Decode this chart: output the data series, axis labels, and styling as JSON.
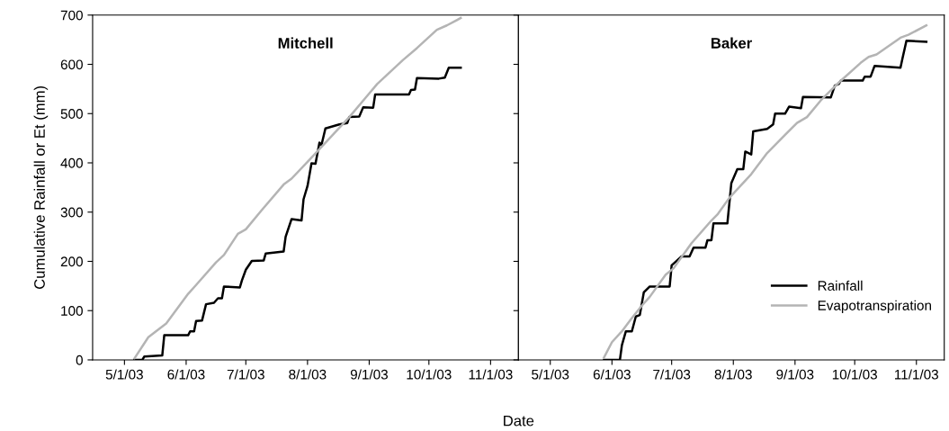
{
  "chart_data": [
    {
      "type": "line",
      "title": "Mitchell",
      "xlabel": "Date",
      "ylabel": "Cumulative Rainfall or Et (mm)",
      "xlim": [
        "2003-04-15",
        "2003-11-15"
      ],
      "ylim": [
        0,
        700
      ],
      "yticks": [
        0,
        100,
        200,
        300,
        400,
        500,
        600,
        700
      ],
      "xticks": [
        {
          "value": "2003-05-01",
          "label": "5/1/03"
        },
        {
          "value": "2003-06-01",
          "label": "6/1/03"
        },
        {
          "value": "2003-07-01",
          "label": "7/1/03"
        },
        {
          "value": "2003-08-01",
          "label": "8/1/03"
        },
        {
          "value": "2003-09-01",
          "label": "9/1/03"
        },
        {
          "value": "2003-10-01",
          "label": "10/1/03"
        },
        {
          "value": "2003-11-01",
          "label": "11/1/03"
        }
      ],
      "grid": false,
      "legend": false,
      "series": [
        {
          "color": "#000000",
          "x": [
            "2003-05-06",
            "2003-05-10",
            "2003-05-11",
            "2003-05-20",
            "2003-05-21",
            "2003-06-02",
            "2003-06-03",
            "2003-06-05",
            "2003-06-06",
            "2003-06-09",
            "2003-06-11",
            "2003-06-15",
            "2003-06-17",
            "2003-06-19",
            "2003-06-20",
            "2003-06-28",
            "2003-06-29",
            "2003-07-01",
            "2003-07-04",
            "2003-07-10",
            "2003-07-11",
            "2003-07-20",
            "2003-07-21",
            "2003-07-24",
            "2003-07-29",
            "2003-07-30",
            "2003-08-01",
            "2003-08-03",
            "2003-08-05",
            "2003-08-07",
            "2003-08-08",
            "2003-08-10",
            "2003-08-17",
            "2003-08-21",
            "2003-08-22",
            "2003-08-27",
            "2003-08-29",
            "2003-09-03",
            "2003-09-04",
            "2003-09-21",
            "2003-09-22",
            "2003-09-24",
            "2003-09-25",
            "2003-10-06",
            "2003-10-09",
            "2003-10-11",
            "2003-10-17"
          ],
          "values": [
            0,
            0,
            7,
            9,
            50,
            50,
            58,
            58,
            79,
            80,
            113,
            116,
            125,
            125,
            149,
            147,
            161,
            183,
            201,
            202,
            216,
            220,
            250,
            286,
            283,
            326,
            353,
            399,
            398,
            441,
            436,
            470,
            478,
            481,
            493,
            494,
            513,
            512,
            539,
            539,
            548,
            549,
            572,
            571,
            573,
            593,
            593
          ]
        },
        {
          "color": "#b4b4b4",
          "x": [
            "2003-05-06",
            "2003-05-13",
            "2003-05-22",
            "2003-06-02",
            "2003-06-06",
            "2003-06-16",
            "2003-06-20",
            "2003-06-27",
            "2003-07-01",
            "2003-07-09",
            "2003-07-20",
            "2003-07-24",
            "2003-08-01",
            "2003-08-08",
            "2003-08-22",
            "2003-08-31",
            "2003-09-05",
            "2003-09-18",
            "2003-09-25",
            "2003-10-05",
            "2003-10-10",
            "2003-10-17"
          ],
          "values": [
            3,
            46,
            74,
            134,
            152,
            198,
            213,
            256,
            265,
            304,
            356,
            368,
            402,
            432,
            493,
            536,
            560,
            609,
            633,
            670,
            679,
            694
          ]
        }
      ]
    },
    {
      "type": "line",
      "title": "Baker",
      "xlim": [
        "2003-04-15",
        "2003-11-15"
      ],
      "ylim": [
        0,
        700
      ],
      "yticks": [
        0,
        100,
        200,
        300,
        400,
        500,
        600,
        700
      ],
      "tick_labels": "x",
      "xticks": [
        {
          "value": "2003-05-01",
          "label": "5/1/03"
        },
        {
          "value": "2003-06-01",
          "label": "6/1/03"
        },
        {
          "value": "2003-07-01",
          "label": "7/1/03"
        },
        {
          "value": "2003-08-01",
          "label": "8/1/03"
        },
        {
          "value": "2003-09-01",
          "label": "9/1/03"
        },
        {
          "value": "2003-10-01",
          "label": "10/1/03"
        },
        {
          "value": "2003-11-01",
          "label": "11/1/03"
        }
      ],
      "grid": false,
      "legend": "bottom right",
      "series": [
        {
          "name": "Rainfall",
          "color": "#000000",
          "x": [
            "2003-05-28",
            "2003-06-05",
            "2003-06-06",
            "2003-06-08",
            "2003-06-11",
            "2003-06-13",
            "2003-06-15",
            "2003-06-17",
            "2003-06-20",
            "2003-06-30",
            "2003-07-01",
            "2003-07-06",
            "2003-07-10",
            "2003-07-12",
            "2003-07-18",
            "2003-07-19",
            "2003-07-21",
            "2003-07-22",
            "2003-07-29",
            "2003-07-31",
            "2003-08-03",
            "2003-08-06",
            "2003-08-07",
            "2003-08-10",
            "2003-08-11",
            "2003-08-18",
            "2003-08-21",
            "2003-08-22",
            "2003-08-27",
            "2003-08-29",
            "2003-09-04",
            "2003-09-05",
            "2003-09-19",
            "2003-09-21",
            "2003-09-23",
            "2003-09-24",
            "2003-10-05",
            "2003-10-06",
            "2003-10-09",
            "2003-10-11",
            "2003-10-24",
            "2003-10-25",
            "2003-10-27",
            "2003-11-06"
          ],
          "values": [
            0,
            0,
            30,
            58,
            58,
            88,
            91,
            137,
            149,
            149,
            192,
            210,
            210,
            228,
            228,
            243,
            243,
            277,
            277,
            359,
            387,
            387,
            423,
            417,
            464,
            469,
            478,
            500,
            500,
            514,
            511,
            534,
            533,
            557,
            560,
            567,
            567,
            575,
            575,
            597,
            593,
            612,
            648,
            646
          ]
        },
        {
          "name": "Evapotranspiration",
          "color": "#b4b4b4",
          "x": [
            "2003-05-28",
            "2003-06-01",
            "2003-06-06",
            "2003-06-11",
            "2003-06-16",
            "2003-06-20",
            "2003-06-28",
            "2003-07-02",
            "2003-07-11",
            "2003-07-21",
            "2003-07-24",
            "2003-07-30",
            "2003-08-10",
            "2003-08-18",
            "2003-08-27",
            "2003-09-02",
            "2003-09-07",
            "2003-09-14",
            "2003-09-23",
            "2003-10-04",
            "2003-10-08",
            "2003-10-12",
            "2003-10-24",
            "2003-10-28",
            "2003-11-06"
          ],
          "values": [
            5,
            36,
            58,
            85,
            110,
            128,
            173,
            186,
            237,
            283,
            295,
            329,
            377,
            420,
            457,
            481,
            493,
            527,
            563,
            603,
            615,
            620,
            654,
            660,
            679
          ]
        }
      ]
    }
  ]
}
